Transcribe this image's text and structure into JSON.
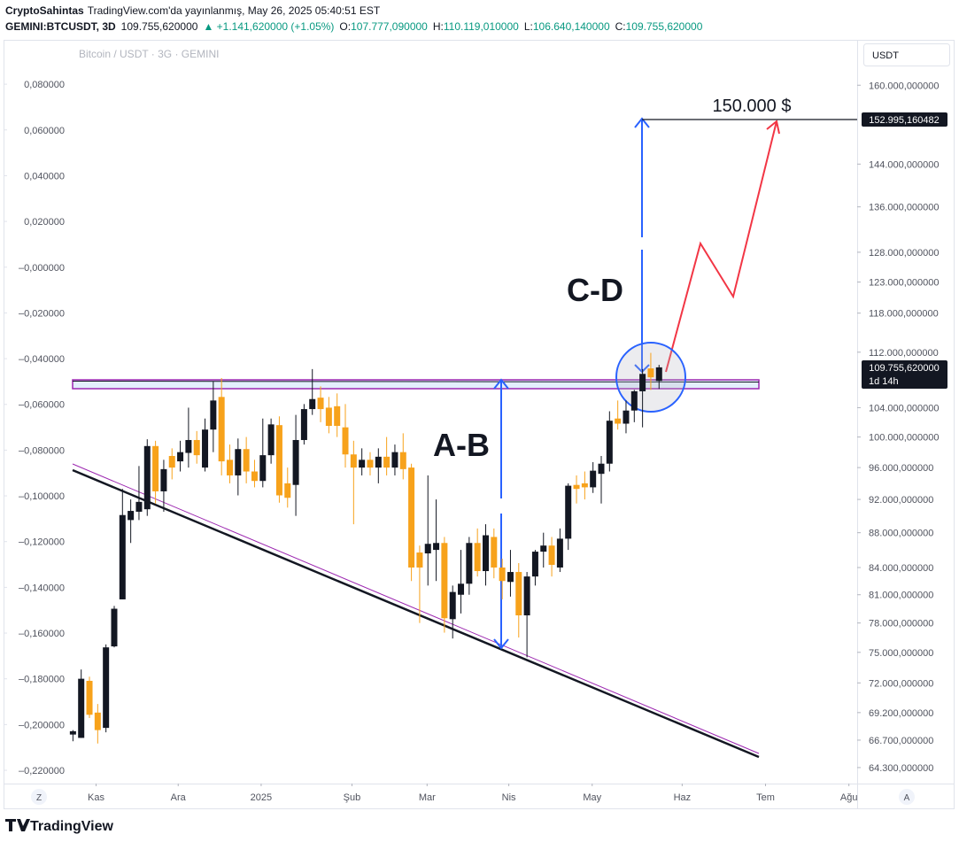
{
  "header": {
    "author": "CryptoSahintas",
    "published": "TradingView.com'da yayınlanmış, May 26, 2025 05:40:51 EST",
    "symbol": "GEMINI:BTCUSDT, 3D",
    "price": "109.755,620000",
    "change": "▲ +1.141,620000 (+1.05%)",
    "o_key": "O:",
    "o": "107.777,090000",
    "h_key": "H:",
    "h": "110.119,010000",
    "l_key": "L:",
    "l": "106.640,140000",
    "c_key": "C:",
    "c": "109.755,620000",
    "currency": "USDT",
    "zoom_button": "Z",
    "auto_button": "A",
    "logo": "TradingView"
  },
  "chart_data": {
    "type": "candlestick",
    "title": "Bitcoin / USDT · 3G · GEMINI",
    "log_scale": true,
    "grid": false,
    "up_color": "#131722",
    "down_color": "#f7a21b",
    "categories": [
      null,
      null,
      null,
      null,
      null,
      null,
      null,
      null,
      null,
      null,
      null,
      null,
      null,
      null,
      null,
      null,
      null,
      null,
      null,
      null,
      null,
      null,
      null,
      null,
      null,
      null,
      null,
      null,
      null,
      null,
      null,
      null,
      null,
      null,
      null,
      null,
      null,
      null,
      null,
      null,
      null,
      null,
      null,
      null,
      null,
      null,
      null,
      null,
      null,
      null,
      null,
      null,
      null,
      null,
      null,
      null,
      null,
      null,
      null,
      null,
      null,
      null,
      null,
      null,
      null,
      null,
      null,
      null,
      null,
      null,
      null,
      null
    ],
    "open": [
      67200,
      66900,
      72200,
      69200,
      67800,
      75600,
      80500,
      89500,
      90500,
      90800,
      98800,
      93000,
      97500,
      96800,
      97900,
      99600,
      96000,
      101000,
      105500,
      97000,
      95000,
      98400,
      95500,
      94300,
      97600,
      101600,
      94000,
      93800,
      99600,
      103800,
      105400,
      104000,
      104200,
      101300,
      97700,
      96000,
      97000,
      96000,
      97400,
      96000,
      98000,
      96000,
      85700,
      85600,
      86000,
      86800,
      78400,
      81000,
      82200,
      86800,
      83600,
      87500,
      84000,
      82400,
      83500,
      78800,
      83000,
      85800,
      86500,
      84000,
      87300,
      93800,
      94000,
      93500,
      95200,
      96500,
      102500,
      101800,
      103600,
      106300,
      109600,
      107777.09
    ],
    "high": [
      67600,
      73300,
      72600,
      70000,
      75800,
      79800,
      93300,
      92000,
      96200,
      99700,
      99500,
      97000,
      98500,
      99500,
      104000,
      100800,
      102500,
      107700,
      108200,
      99000,
      99800,
      100000,
      97000,
      102500,
      102500,
      102800,
      96000,
      103000,
      104500,
      109500,
      107000,
      105500,
      106000,
      104500,
      99500,
      98500,
      98000,
      98500,
      100000,
      99000,
      100500,
      96500,
      86500,
      95000,
      92000,
      87500,
      82000,
      86000,
      87500,
      88500,
      89000,
      88500,
      85000,
      86000,
      84500,
      83500,
      86000,
      88000,
      87500,
      88500,
      94000,
      95000,
      95500,
      96700,
      97500,
      103500,
      105000,
      105000,
      106500,
      109500,
      111900,
      110119.01
    ],
    "low": [
      66600,
      66900,
      68700,
      66400,
      67400,
      75500,
      80500,
      86800,
      89500,
      90000,
      91500,
      90500,
      94500,
      95500,
      96000,
      96500,
      95500,
      98000,
      95000,
      94000,
      92500,
      94000,
      93500,
      93500,
      96500,
      91600,
      91000,
      90000,
      99000,
      103000,
      102000,
      100500,
      100000,
      96000,
      89000,
      95000,
      95000,
      94000,
      95000,
      95000,
      94500,
      82500,
      78000,
      82000,
      82500,
      77000,
      76400,
      79000,
      81000,
      83000,
      82000,
      82800,
      80500,
      80800,
      76500,
      74500,
      82000,
      84000,
      83000,
      83500,
      86000,
      91500,
      92000,
      92800,
      91500,
      95500,
      101000,
      100500,
      102000,
      101300,
      106500,
      106640.14
    ],
    "close": [
      67500,
      72400,
      69000,
      67600,
      75500,
      79500,
      90100,
      90600,
      91700,
      98800,
      93000,
      95800,
      96000,
      98000,
      99600,
      97600,
      101000,
      105000,
      96800,
      95000,
      98400,
      95500,
      94300,
      97600,
      101700,
      92500,
      92200,
      99600,
      103800,
      105200,
      103800,
      101500,
      101500,
      97700,
      96000,
      97000,
      96000,
      97400,
      96000,
      98000,
      95800,
      84000,
      84000,
      86700,
      86800,
      78500,
      81300,
      82200,
      86800,
      83600,
      87700,
      84000,
      82500,
      83500,
      78800,
      83000,
      85800,
      86500,
      84300,
      87300,
      93700,
      93300,
      93500,
      95600,
      96500,
      102200,
      101800,
      103600,
      106300,
      108800,
      108300,
      109755.62
    ],
    "xlim": [
      -8.3,
      95
    ],
    "xticks": [
      {
        "value": 2.8,
        "label": "Kas"
      },
      {
        "value": 12.75,
        "label": "Ara"
      },
      {
        "value": 22.8,
        "label": "2025"
      },
      {
        "value": 33.8,
        "label": "Şub"
      },
      {
        "value": 42.9,
        "label": "Mar"
      },
      {
        "value": 52.8,
        "label": "Nis"
      },
      {
        "value": 62.9,
        "label": "May"
      },
      {
        "value": 73.8,
        "label": "Haz"
      },
      {
        "value": 83.9,
        "label": "Tem"
      },
      {
        "value": 94,
        "label": "Ağu"
      }
    ],
    "ylim": [
      62940,
      170000
    ],
    "yticks": [
      {
        "value": 160000,
        "label": "160.000,000000"
      },
      {
        "value": 144000,
        "label": "144.000,000000"
      },
      {
        "value": 136000,
        "label": "136.000,000000"
      },
      {
        "value": 128000,
        "label": "128.000,000000"
      },
      {
        "value": 123000,
        "label": "123.000,000000"
      },
      {
        "value": 118000,
        "label": "118.000,000000"
      },
      {
        "value": 112000,
        "label": "112.000,000000"
      },
      {
        "value": 104000,
        "label": "104.000,000000"
      },
      {
        "value": 100000,
        "label": "100.000,000000"
      },
      {
        "value": 96000,
        "label": "96.000,000000"
      },
      {
        "value": 92000,
        "label": "92.000,000000"
      },
      {
        "value": 88000,
        "label": "88.000,000000"
      },
      {
        "value": 84000,
        "label": "84.000,000000"
      },
      {
        "value": 81000,
        "label": "81.000,000000"
      },
      {
        "value": 78000,
        "label": "78.000,000000"
      },
      {
        "value": 75000,
        "label": "75.000,000000"
      },
      {
        "value": 72000,
        "label": "72.000,000000"
      },
      {
        "value": 69200,
        "label": "69.200,000000"
      },
      {
        "value": 66700,
        "label": "66.700,000000"
      },
      {
        "value": 64300,
        "label": "64.300,000000"
      }
    ],
    "y2_side": "left",
    "y2lim": [
      -0.2258,
      0.0994
    ],
    "y2ticks": [
      {
        "value": 0.08,
        "label": "0,080000"
      },
      {
        "value": 0.06,
        "label": "0,060000"
      },
      {
        "value": 0.04,
        "label": "0,040000"
      },
      {
        "value": 0.02,
        "label": "0,020000"
      },
      {
        "value": 0,
        "label": "–0,000000"
      },
      {
        "value": -0.02,
        "label": "–0,020000"
      },
      {
        "value": -0.04,
        "label": "–0,040000"
      },
      {
        "value": -0.06,
        "label": "–0,060000"
      },
      {
        "value": -0.08,
        "label": "–0,080000"
      },
      {
        "value": -0.1,
        "label": "–0,100000"
      },
      {
        "value": -0.12,
        "label": "–0,120000"
      },
      {
        "value": -0.14,
        "label": "–0,140000"
      },
      {
        "value": -0.16,
        "label": "–0,160000"
      },
      {
        "value": -0.18,
        "label": "–0,180000"
      },
      {
        "value": -0.2,
        "label": "–0,200000"
      },
      {
        "value": -0.22,
        "label": "–0,220000"
      }
    ],
    "annotations": {
      "target": "150.000 $",
      "cd": "C-D",
      "ab": "A-B",
      "target_price": "152.995,160482",
      "last_price": "109.755,620000",
      "countdown": "1d 14h"
    }
  }
}
